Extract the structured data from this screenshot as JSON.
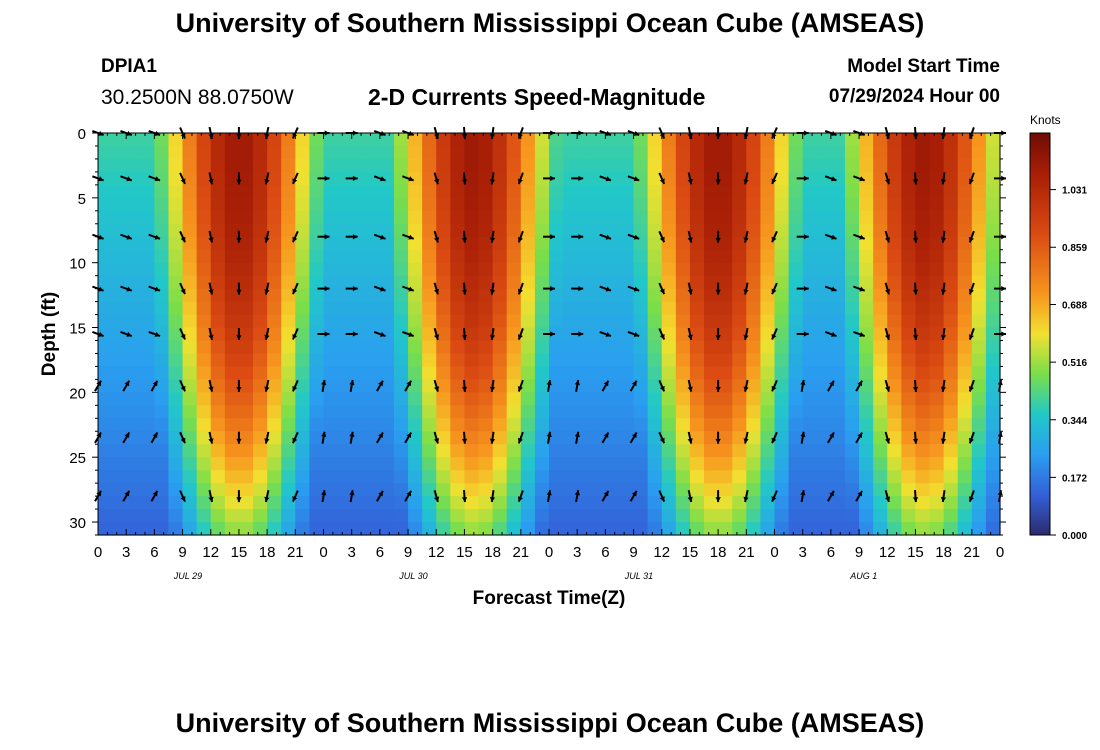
{
  "header": {
    "title": "University of Southern Mississippi Ocean Cube (AMSEAS)",
    "station": "DPIA1",
    "coordinates": "30.2500N  88.0750W",
    "plot_title": "2-D Currents Speed-Magnitude",
    "model_start_label": "Model Start Time",
    "model_start_value": "07/29/2024 Hour 00"
  },
  "footer": {
    "title": "University of Southern Mississippi Ocean Cube (AMSEAS)"
  },
  "chart_data": {
    "type": "heatmap",
    "title": "2-D Currents Speed-Magnitude",
    "xlabel": "Forecast Time(Z)",
    "ylabel": "Depth (ft)",
    "x_range_hours": [
      0,
      96
    ],
    "y_range_ft": [
      0,
      31
    ],
    "x_tick_hours": [
      0,
      3,
      6,
      9,
      12,
      15,
      18,
      21,
      24,
      27,
      30,
      33,
      36,
      39,
      42,
      45,
      48,
      51,
      54,
      57,
      60,
      63,
      66,
      69,
      72,
      75,
      78,
      81,
      84,
      87,
      90,
      93,
      96
    ],
    "x_tick_labels": [
      "0",
      "3",
      "6",
      "9",
      "12",
      "15",
      "18",
      "21",
      "0",
      "3",
      "6",
      "9",
      "12",
      "15",
      "18",
      "21",
      "0",
      "3",
      "6",
      "9",
      "12",
      "15",
      "18",
      "21",
      "0",
      "3",
      "6",
      "9",
      "12",
      "15",
      "18",
      "21",
      "0"
    ],
    "y_ticks": [
      0,
      5,
      10,
      15,
      20,
      25,
      30
    ],
    "y_tick_labels": [
      "0",
      "5",
      "10",
      "15",
      "20",
      "25",
      "30"
    ],
    "date_labels": [
      {
        "hour": 12,
        "label": "JUL 29"
      },
      {
        "hour": 36,
        "label": "JUL 30"
      },
      {
        "hour": 60,
        "label": "JUL 31"
      },
      {
        "hour": 84,
        "label": "AUG 1"
      }
    ],
    "colorbar": {
      "title": "Knots",
      "min": 0.0,
      "max": 1.2,
      "tick_values": [
        0.0,
        0.172,
        0.344,
        0.516,
        0.688,
        0.859,
        1.031
      ],
      "tick_labels": [
        "0.000",
        "0.172",
        "0.344",
        "0.516",
        "0.688",
        "0.859",
        "1.031"
      ]
    },
    "arrow_depths_ft": [
      0,
      3.5,
      8,
      12,
      15.5,
      19.5,
      23.5,
      28
    ],
    "arrow_times_hours": [
      0,
      3,
      6,
      9,
      12,
      15,
      18,
      21,
      24,
      27,
      30,
      33,
      36,
      39,
      42,
      45,
      48,
      51,
      54,
      57,
      60,
      63,
      66,
      69,
      72,
      75,
      78,
      81,
      84,
      87,
      90,
      93,
      96
    ],
    "tidal_flow": {
      "ebb_peaks_hours": [
        15,
        40,
        66,
        88
      ],
      "ebb_peak_speed_knots": 1.1,
      "flood_shallow_speed_knots": 0.3,
      "slack_speed_knots": 0.1
    }
  }
}
